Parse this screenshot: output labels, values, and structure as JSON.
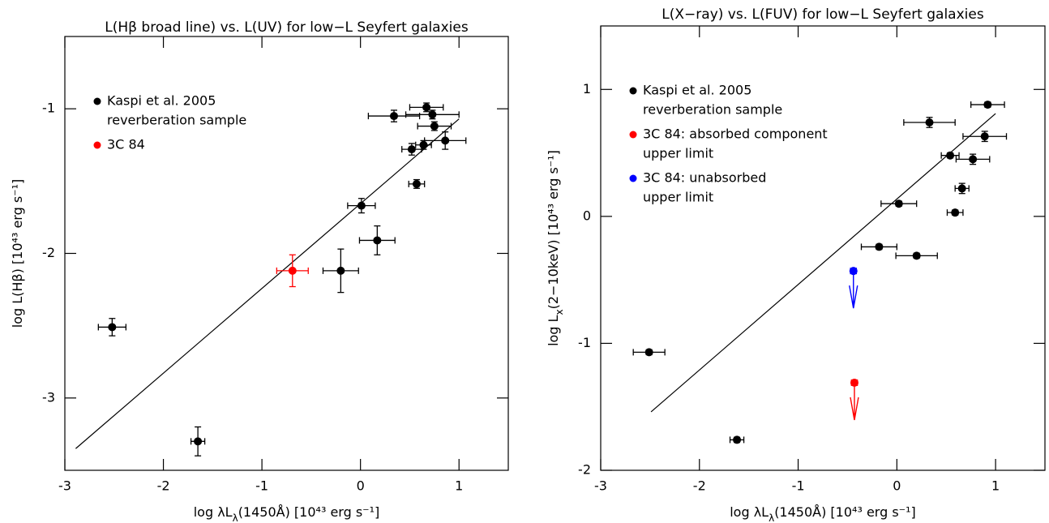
{
  "chart_data": [
    {
      "type": "scatter",
      "title": "L(Hβ  broad line) vs. L(UV) for low−L Seyfert galaxies",
      "x_label": [
        "log λL",
        "λ",
        "(1450Å)  [10⁴³ erg s⁻¹]"
      ],
      "y_label": [
        "log L(Hβ)  [10⁴³ erg s⁻¹]"
      ],
      "xlim": [
        -3,
        1.5
      ],
      "ylim": [
        -3.5,
        -0.5
      ],
      "xticks": [
        -3,
        -2,
        -1,
        0,
        1
      ],
      "yticks": [
        -3,
        -2,
        -1
      ],
      "legend": "upper left",
      "series": [
        {
          "name": [
            "Kaspi et al. 2005",
            "reverberation sample"
          ],
          "color": "#000000",
          "x": [
            -2.52,
            -1.65,
            -0.2,
            0.01,
            0.17,
            0.34,
            0.52,
            0.57,
            0.64,
            0.67,
            0.73,
            0.75,
            0.86
          ],
          "values": [
            -2.51,
            -3.3,
            -2.12,
            -1.67,
            -1.91,
            -1.05,
            -1.28,
            -1.52,
            -1.25,
            -0.99,
            -1.04,
            -1.12,
            -1.22
          ],
          "xerr": [
            0.14,
            0.07,
            0.18,
            0.14,
            0.18,
            0.26,
            0.1,
            0.08,
            0.08,
            0.17,
            0.27,
            0.17,
            0.21
          ],
          "yerr": [
            0.06,
            0.1,
            0.15,
            0.05,
            0.1,
            0.04,
            0.04,
            0.03,
            0.03,
            0.03,
            0.03,
            0.03,
            0.06
          ]
        },
        {
          "name": [
            "3C 84"
          ],
          "color": "#ff0000",
          "x": [
            -0.69
          ],
          "values": [
            -2.12
          ],
          "xerr": [
            0.16
          ],
          "yerr": [
            0.11
          ]
        }
      ],
      "fit_line": {
        "x": [
          -2.89,
          1.0
        ],
        "values": [
          -3.35,
          -1.07
        ]
      }
    },
    {
      "type": "scatter",
      "title": "L(X−ray) vs. L(FUV) for low−L Seyfert galaxies",
      "x_label": [
        "log λL",
        "λ",
        "(1450Å)  [10⁴³ erg s⁻¹]"
      ],
      "y_label": [
        "log L",
        "x",
        "(2−10keV)  [10⁴³ erg s⁻¹]"
      ],
      "xlim": [
        -3,
        1.5
      ],
      "ylim": [
        -2,
        1.5
      ],
      "xticks": [
        -3,
        -2,
        -1,
        0,
        1
      ],
      "yticks": [
        -2,
        -1,
        0,
        1
      ],
      "legend": "upper left",
      "series": [
        {
          "name": [
            "Kaspi et al. 2005",
            "reverberation sample"
          ],
          "color": "#000000",
          "x": [
            -2.51,
            -1.62,
            -0.18,
            0.02,
            0.2,
            0.33,
            0.54,
            0.59,
            0.66,
            0.77,
            0.92,
            0.89
          ],
          "values": [
            -1.07,
            -1.76,
            -0.24,
            0.1,
            -0.31,
            0.74,
            0.48,
            0.03,
            0.22,
            0.45,
            0.88,
            0.63
          ],
          "xerr": [
            0.16,
            0.07,
            0.18,
            0.18,
            0.21,
            0.26,
            0.09,
            0.08,
            0.07,
            0.17,
            0.17,
            0.22
          ],
          "yerr": [
            0.02,
            0.02,
            0.02,
            0.02,
            0.02,
            0.04,
            0.02,
            0.02,
            0.04,
            0.04,
            0.02,
            0.04
          ]
        },
        {
          "name": [
            "3C 84: absorbed component",
            "upper limit"
          ],
          "color": "#ff0000",
          "upper_limit": true,
          "x": [
            -0.43
          ],
          "values": [
            -1.31
          ],
          "xerr": [
            0.03
          ]
        },
        {
          "name": [
            "3C 84: unabsorbed",
            "upper limit"
          ],
          "color": "#0000ff",
          "upper_limit": true,
          "x": [
            -0.44
          ],
          "values": [
            -0.43
          ],
          "xerr": [
            0.03
          ]
        }
      ],
      "fit_line": {
        "x": [
          -2.49,
          1.0
        ],
        "values": [
          -1.54,
          0.81
        ]
      }
    }
  ]
}
